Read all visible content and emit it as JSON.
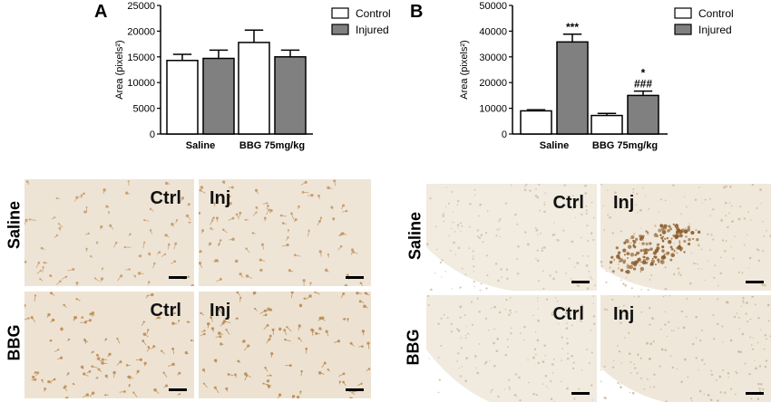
{
  "panel_a": {
    "letter": "A"
  },
  "panel_b": {
    "letter": "B"
  },
  "chart_data": [
    {
      "type": "bar",
      "panel": "A",
      "categories": [
        "Saline",
        "BBG 75mg/kg"
      ],
      "ylabel": "Area (pixels²)",
      "ylim": [
        0,
        25000
      ],
      "yticks": [
        "0",
        "5000",
        "10000",
        "15000",
        "20000",
        "25000"
      ],
      "series": [
        {
          "name": "Control",
          "color": "#ffffff",
          "values": [
            14300,
            17800
          ],
          "errors": [
            1200,
            2400
          ]
        },
        {
          "name": "Injured",
          "color": "#808080",
          "values": [
            14700,
            15000
          ],
          "errors": [
            1600,
            1300
          ]
        }
      ],
      "annotations": [],
      "legend": "top-right"
    },
    {
      "type": "bar",
      "panel": "B",
      "categories": [
        "Saline",
        "BBG 75mg/kg"
      ],
      "ylabel": "Area (pixels²)",
      "ylim": [
        0,
        50000
      ],
      "yticks": [
        "0",
        "10000",
        "20000",
        "30000",
        "40000",
        "50000"
      ],
      "series": [
        {
          "name": "Control",
          "color": "#ffffff",
          "values": [
            9000,
            7200
          ],
          "errors": [
            400,
            800
          ]
        },
        {
          "name": "Injured",
          "color": "#808080",
          "values": [
            35800,
            15000
          ],
          "errors": [
            3000,
            1700
          ]
        }
      ],
      "annotations": [
        {
          "category": 0,
          "series": 1,
          "lines": [
            "***"
          ]
        },
        {
          "category": 1,
          "series": 1,
          "lines": [
            "*",
            "###"
          ]
        }
      ],
      "legend": "top-right"
    }
  ],
  "micrographs": {
    "left": {
      "rows": [
        "Saline",
        "BBG"
      ],
      "tiles": [
        {
          "label": "Ctrl"
        },
        {
          "label": "Inj"
        },
        {
          "label": "Ctrl"
        },
        {
          "label": "Inj"
        }
      ]
    },
    "right": {
      "rows": [
        "Saline",
        "BBG"
      ],
      "tiles": [
        {
          "label": "Ctrl"
        },
        {
          "label": "Inj"
        },
        {
          "label": "Ctrl"
        },
        {
          "label": "Inj"
        }
      ]
    }
  }
}
